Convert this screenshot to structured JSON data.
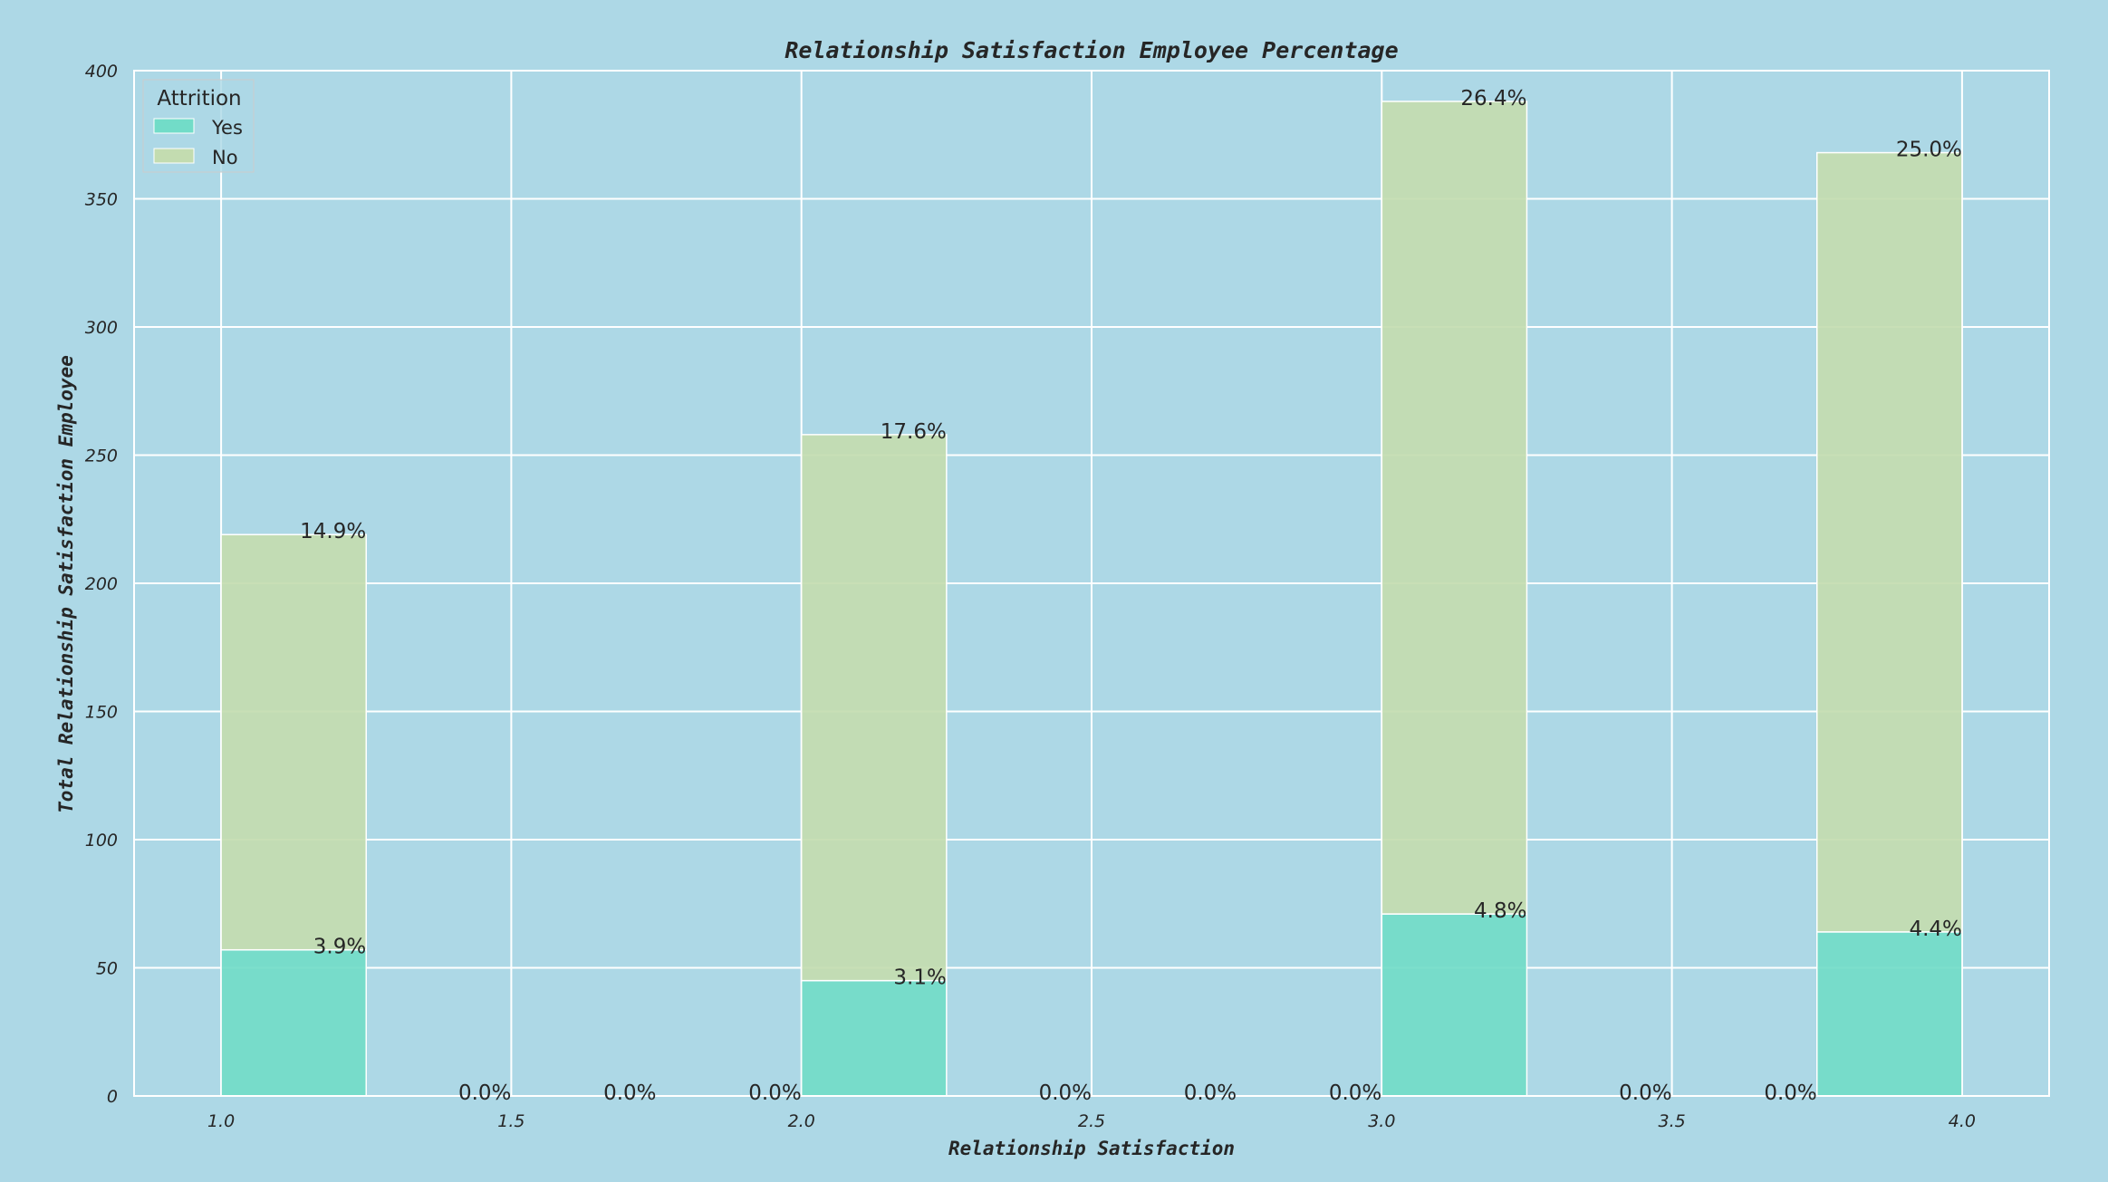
{
  "chart_data": {
    "type": "bar",
    "title": "Relationship Satisfaction Employee Percentage",
    "xlabel": "Relationship Satisfaction",
    "ylabel": "Total Relationship Satisfaction Employee",
    "xlim": [
      0.85,
      4.15
    ],
    "ylim": [
      0,
      400
    ],
    "x_ticks": [
      1.0,
      1.5,
      2.0,
      2.5,
      3.0,
      3.5,
      4.0
    ],
    "x_tick_labels": [
      "1.0",
      "1.5",
      "2.0",
      "2.5",
      "3.0",
      "3.5",
      "4.0"
    ],
    "y_ticks": [
      0,
      50,
      100,
      150,
      200,
      250,
      300,
      350,
      400
    ],
    "y_tick_labels": [
      "0",
      "50",
      "100",
      "150",
      "200",
      "250",
      "300",
      "350",
      "400"
    ],
    "grid": true,
    "stacked": true,
    "bin_edges": [
      1.0,
      1.25,
      1.5,
      1.75,
      2.0,
      2.25,
      2.5,
      2.75,
      3.0,
      3.25,
      3.5,
      3.75,
      4.0
    ],
    "series": [
      {
        "name": "Yes",
        "color": "#72dcc8",
        "values": [
          57,
          0,
          0,
          0,
          45,
          0,
          0,
          0,
          71,
          0,
          0,
          64
        ]
      },
      {
        "name": "No",
        "color": "#c3dcb0",
        "values": [
          162,
          0,
          0,
          0,
          213,
          0,
          0,
          0,
          317,
          0,
          0,
          304
        ]
      }
    ],
    "data_labels": [
      {
        "series": "Yes",
        "labels": [
          "3.9%",
          "0.0%",
          "0.0%",
          "0.0%",
          "3.1%",
          "0.0%",
          "0.0%",
          "0.0%",
          "4.8%",
          "0.0%",
          "0.0%",
          "4.4%"
        ]
      },
      {
        "series": "No",
        "labels": [
          "14.9%",
          "",
          "",
          "",
          "17.6%",
          "",
          "",
          "",
          "26.4%",
          "",
          "",
          "25.0%"
        ]
      }
    ],
    "legend": {
      "title": "Attrition",
      "position": "top-left",
      "entries": [
        {
          "label": "Yes",
          "color": "#72dcc8"
        },
        {
          "label": "No",
          "color": "#c3dcb0"
        }
      ]
    }
  }
}
